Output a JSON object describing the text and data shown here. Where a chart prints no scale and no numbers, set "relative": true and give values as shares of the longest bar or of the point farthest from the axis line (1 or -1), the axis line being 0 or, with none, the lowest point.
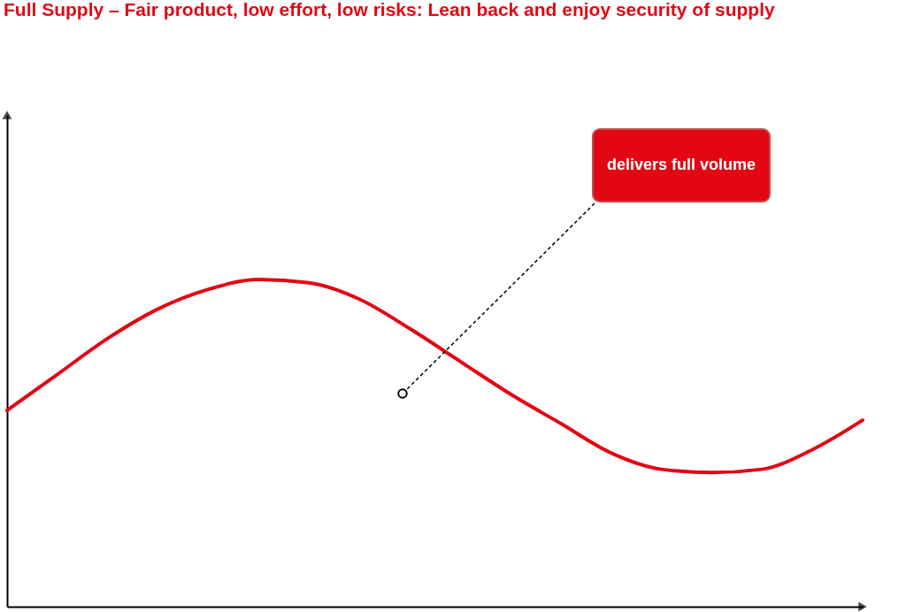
{
  "chart_data": {
    "type": "line",
    "title": "Full Supply – Fair product, low effort, low risks: Lean back and enjoy security of supply",
    "relative": true,
    "categories": [
      null,
      null,
      null,
      null,
      null,
      null,
      null,
      null,
      null,
      null,
      null,
      null,
      null,
      null,
      null,
      null,
      null,
      null
    ],
    "series": [
      {
        "color": "#e30613",
        "values": [
          0.6,
          0.71,
          0.82,
          0.91,
          0.97,
          1.0,
          0.99,
          0.94,
          0.85,
          0.75,
          0.65,
          0.56,
          0.47,
          0.42,
          0.41,
          0.42,
          0.48,
          0.57
        ]
      }
    ],
    "annotations": [
      "delivers full volume"
    ],
    "legend": false,
    "grid": false,
    "marker": "none",
    "line_style": "solid"
  }
}
